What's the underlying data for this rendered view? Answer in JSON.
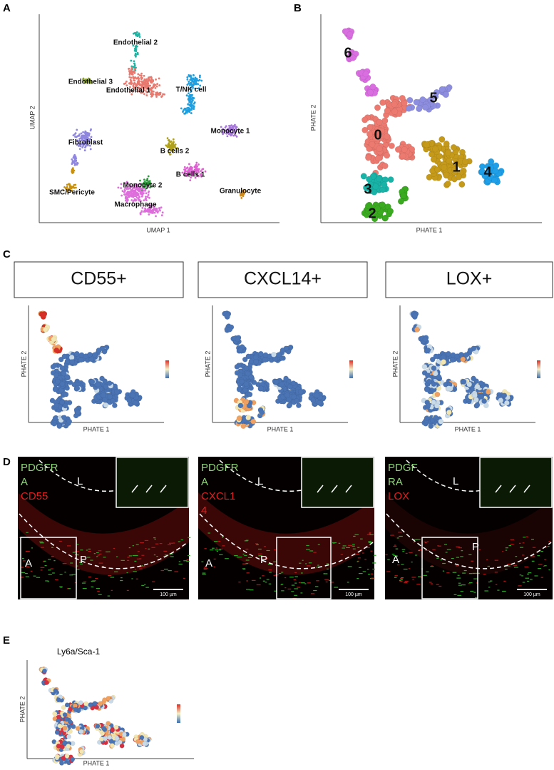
{
  "A": {
    "label": "A",
    "x_label": "UMAP 1",
    "y_label": "UMAP 2",
    "clusters": [
      "Endothelial 2",
      "Endothelial 3",
      "Endothelial 1",
      "T/NK cell",
      "Monocyte 1",
      "Fibroblast",
      "B cells 2",
      "B cells 1",
      "Monocyte 2",
      "SMC/Pericyte",
      "Macrophage",
      "Granulocyte"
    ]
  },
  "B": {
    "label": "B",
    "x_label": "PHATE 1",
    "y_label": "PHATE 2",
    "clusters": [
      "0",
      "1",
      "2",
      "3",
      "4",
      "5",
      "6"
    ]
  },
  "C": {
    "label": "C",
    "panels": [
      {
        "title": "CD55+",
        "x_label": "PHATE 1",
        "y_label": "PHATE 2"
      },
      {
        "title": "CXCL14+",
        "x_label": "PHATE 1",
        "y_label": "PHATE 2"
      },
      {
        "title": "LOX+",
        "x_label": "PHATE 1",
        "y_label": "PHATE 2"
      }
    ]
  },
  "D": {
    "label": "D",
    "panels": [
      {
        "stain_lines": [
          "PDGFR",
          "A"
        ],
        "marker_lines": [
          "CD55"
        ],
        "regions": [
          "L",
          "P",
          "A"
        ],
        "scale_bar": "100 µm"
      },
      {
        "stain_lines": [
          "PDGFR",
          "A"
        ],
        "marker_lines": [
          "CXCL1",
          "4"
        ],
        "regions": [
          "L",
          "P",
          "A"
        ],
        "scale_bar": "100 µm"
      },
      {
        "stain_lines": [
          "PDGF",
          "RA"
        ],
        "marker_lines": [
          "LOX"
        ],
        "regions": [
          "L",
          "A",
          "P"
        ],
        "scale_bar": "100 µm"
      }
    ]
  },
  "E": {
    "label": "E",
    "title": "Ly6a/Sca-1",
    "x_label": "PHATE 1",
    "y_label": "PHATE 2"
  }
}
